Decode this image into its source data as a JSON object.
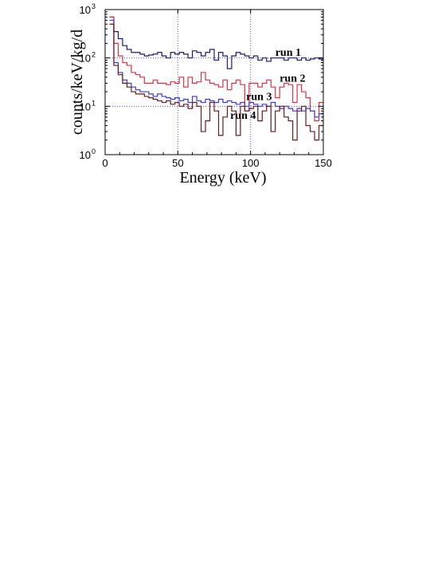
{
  "chart_data": {
    "type": "line",
    "step": true,
    "xlabel": "Energy (keV)",
    "ylabel": "counts/keV/kg/d",
    "xlim": [
      0,
      150
    ],
    "ylim": [
      1,
      1000
    ],
    "yscale": "log",
    "grid": true,
    "x_ticks": [
      "0",
      "50",
      "100",
      "150"
    ],
    "y_ticks": [
      {
        "value": 1,
        "base": "10",
        "exp": "0"
      },
      {
        "value": 10,
        "base": "10",
        "exp": "1"
      },
      {
        "value": 100,
        "base": "10",
        "exp": "2"
      },
      {
        "value": 1000,
        "base": "10",
        "exp": "3"
      }
    ],
    "bin_width": 3,
    "bin_start": 3,
    "series": [
      {
        "name": "run 1",
        "color": "#1a1a7a",
        "values": [
          700,
          350,
          250,
          180,
          150,
          130,
          130,
          120,
          110,
          115,
          120,
          130,
          110,
          100,
          130,
          120,
          130,
          120,
          100,
          140,
          130,
          110,
          130,
          150,
          90,
          130,
          110,
          60,
          110,
          130,
          120,
          110,
          100,
          110,
          90,
          100,
          85,
          100,
          100,
          100,
          90,
          100,
          100,
          90,
          100,
          90,
          95,
          100,
          95
        ]
      },
      {
        "name": "run 2",
        "color": "#e03040",
        "values": [
          700,
          200,
          110,
          80,
          70,
          50,
          45,
          40,
          30,
          30,
          35,
          30,
          30,
          28,
          32,
          30,
          40,
          25,
          40,
          30,
          32,
          50,
          35,
          30,
          28,
          25,
          35,
          22,
          30,
          35,
          28,
          8,
          30,
          30,
          25,
          30,
          35,
          25,
          15,
          25,
          30,
          28,
          12,
          28,
          20,
          15,
          8,
          5,
          12
        ]
      },
      {
        "name": "run 3",
        "color": "#3a3ad8",
        "values": [
          600,
          80,
          50,
          35,
          30,
          25,
          22,
          20,
          20,
          18,
          16,
          18,
          16,
          15,
          14,
          15,
          13,
          14,
          12,
          16,
          13,
          12,
          14,
          13,
          12,
          14,
          12,
          13,
          12,
          11,
          12,
          10,
          12,
          11,
          10,
          11,
          10,
          12,
          10,
          9,
          10,
          9,
          8,
          9,
          8,
          9,
          8,
          6,
          7
        ]
      },
      {
        "name": "run 4",
        "color": "#6a1a1a",
        "values": [
          500,
          70,
          45,
          30,
          25,
          20,
          18,
          18,
          16,
          15,
          14,
          13,
          12,
          13,
          11,
          12,
          10,
          11,
          9,
          12,
          10,
          3,
          5,
          12,
          8,
          2.5,
          6,
          10,
          8,
          2.5,
          10,
          8,
          9,
          10,
          5,
          8,
          10,
          3,
          8,
          10,
          6,
          5,
          2,
          8,
          10,
          4,
          3,
          2,
          4
        ]
      }
    ],
    "annotations": [
      {
        "text": "run 1",
        "x": 117,
        "y": 110
      },
      {
        "text": "run 2",
        "x": 120,
        "y": 32
      },
      {
        "text": "run 3",
        "x": 97,
        "y": 13.5
      },
      {
        "text": "run 4",
        "x": 86,
        "y": 5.5
      }
    ]
  }
}
